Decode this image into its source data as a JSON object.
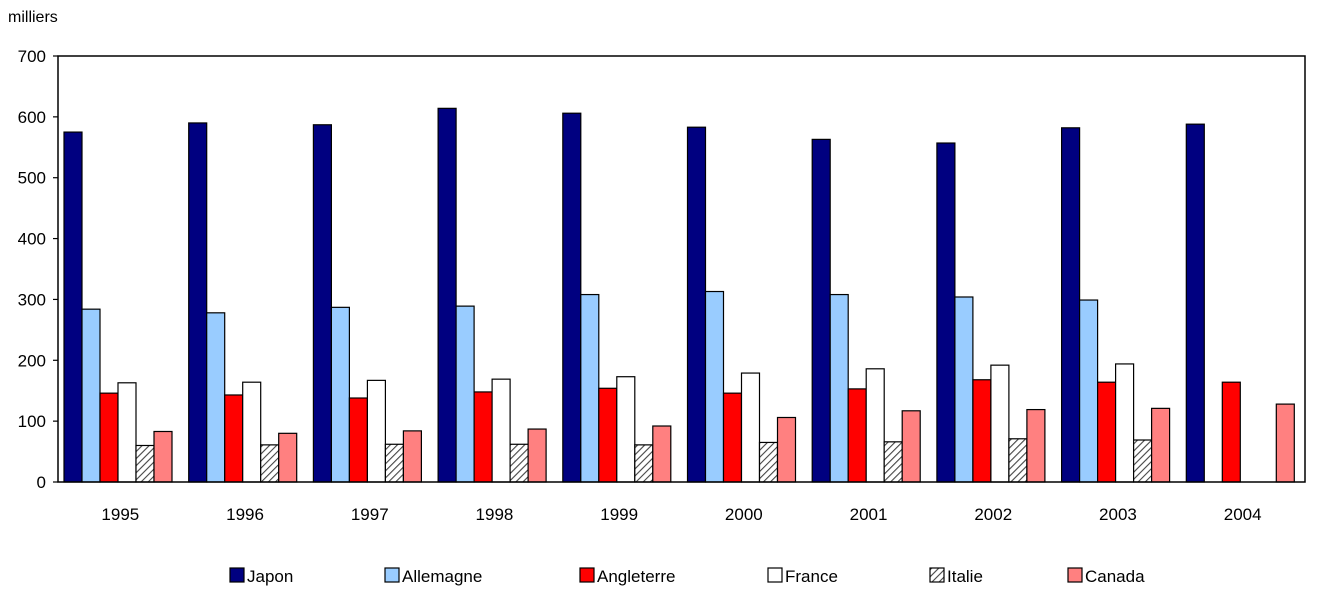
{
  "chart_data": {
    "type": "bar",
    "title": "",
    "xlabel": "",
    "ylabel": "milliers",
    "ylim": [
      0,
      700
    ],
    "yticks": [
      "0",
      "100",
      "200",
      "300",
      "400",
      "500",
      "600",
      "700"
    ],
    "grid": false,
    "legend_position": "bottom",
    "categories": [
      "1995",
      "1996",
      "1997",
      "1998",
      "1999",
      "2000",
      "2001",
      "2002",
      "2003",
      "2004"
    ],
    "series": [
      {
        "name": "Japon",
        "color": "#000080",
        "pattern": "solid",
        "values": [
          575,
          590,
          587,
          614,
          606,
          583,
          563,
          557,
          582,
          588
        ]
      },
      {
        "name": "Allemagne",
        "color": "#99ccff",
        "pattern": "solid",
        "values": [
          284,
          278,
          287,
          289,
          308,
          313,
          308,
          304,
          299,
          null
        ]
      },
      {
        "name": "Angleterre",
        "color": "#ff0000",
        "pattern": "solid",
        "values": [
          146,
          143,
          138,
          148,
          154,
          146,
          153,
          168,
          164,
          164
        ]
      },
      {
        "name": "France",
        "color": "#ffffff",
        "pattern": "solid",
        "values": [
          163,
          164,
          167,
          169,
          173,
          179,
          186,
          192,
          194,
          null
        ]
      },
      {
        "name": "Italie",
        "color": "#808080",
        "pattern": "hatch",
        "values": [
          60,
          61,
          62,
          62,
          61,
          65,
          66,
          71,
          69,
          null
        ]
      },
      {
        "name": "Canada",
        "color": "#ff8080",
        "pattern": "solid",
        "values": [
          83,
          80,
          84,
          87,
          92,
          106,
          117,
          119,
          121,
          128
        ]
      }
    ]
  }
}
